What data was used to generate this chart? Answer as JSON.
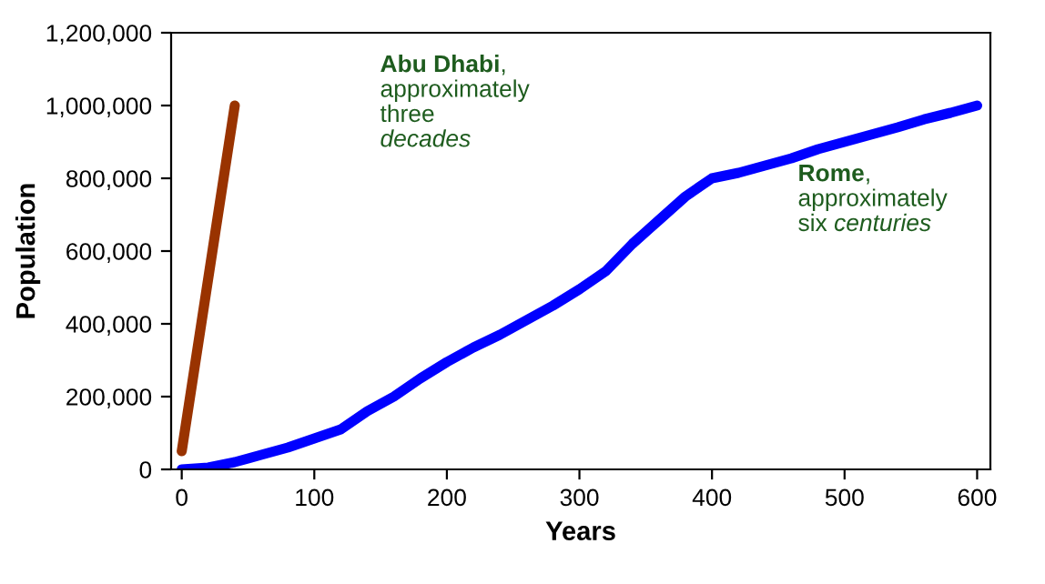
{
  "chart_data": {
    "type": "line",
    "xlabel": "Years",
    "ylabel": "Population",
    "xlim": [
      -8,
      610
    ],
    "xticks": [
      0,
      100,
      200,
      300,
      400,
      500,
      600
    ],
    "ylim": [
      0,
      1200000
    ],
    "yticks": [
      {
        "value": 0,
        "label": "0"
      },
      {
        "value": 200000,
        "label": "200,000"
      },
      {
        "value": 400000,
        "label": "400,000"
      },
      {
        "value": 600000,
        "label": "600,000"
      },
      {
        "value": 800000,
        "label": "800,000"
      },
      {
        "value": 1000000,
        "label": "1,000,000"
      },
      {
        "value": 1200000,
        "label": "1,200,000"
      }
    ],
    "grid": false,
    "marker": "none",
    "line_style": "solid",
    "series": [
      {
        "color": "#993300",
        "x": [
          0,
          40
        ],
        "values": [
          50000,
          1000000
        ]
      },
      {
        "color": "#0000ff",
        "x": [
          0,
          20,
          40,
          60,
          80,
          100,
          120,
          140,
          160,
          180,
          200,
          220,
          240,
          260,
          280,
          300,
          320,
          340,
          360,
          380,
          400,
          420,
          440,
          460,
          480,
          500,
          520,
          540,
          560,
          580,
          600
        ],
        "values": [
          0,
          5000,
          20000,
          40000,
          60000,
          85000,
          110000,
          160000,
          200000,
          250000,
          295000,
          335000,
          370000,
          410000,
          450000,
          495000,
          545000,
          620000,
          685000,
          750000,
          800000,
          815000,
          835000,
          855000,
          880000,
          900000,
          920000,
          940000,
          962000,
          980000,
          1000000
        ]
      }
    ],
    "annotations": [
      "Abu Dhabi,\napproximately\nthree\ndecades",
      "Rome,\napproximately\nsix centuries"
    ]
  }
}
